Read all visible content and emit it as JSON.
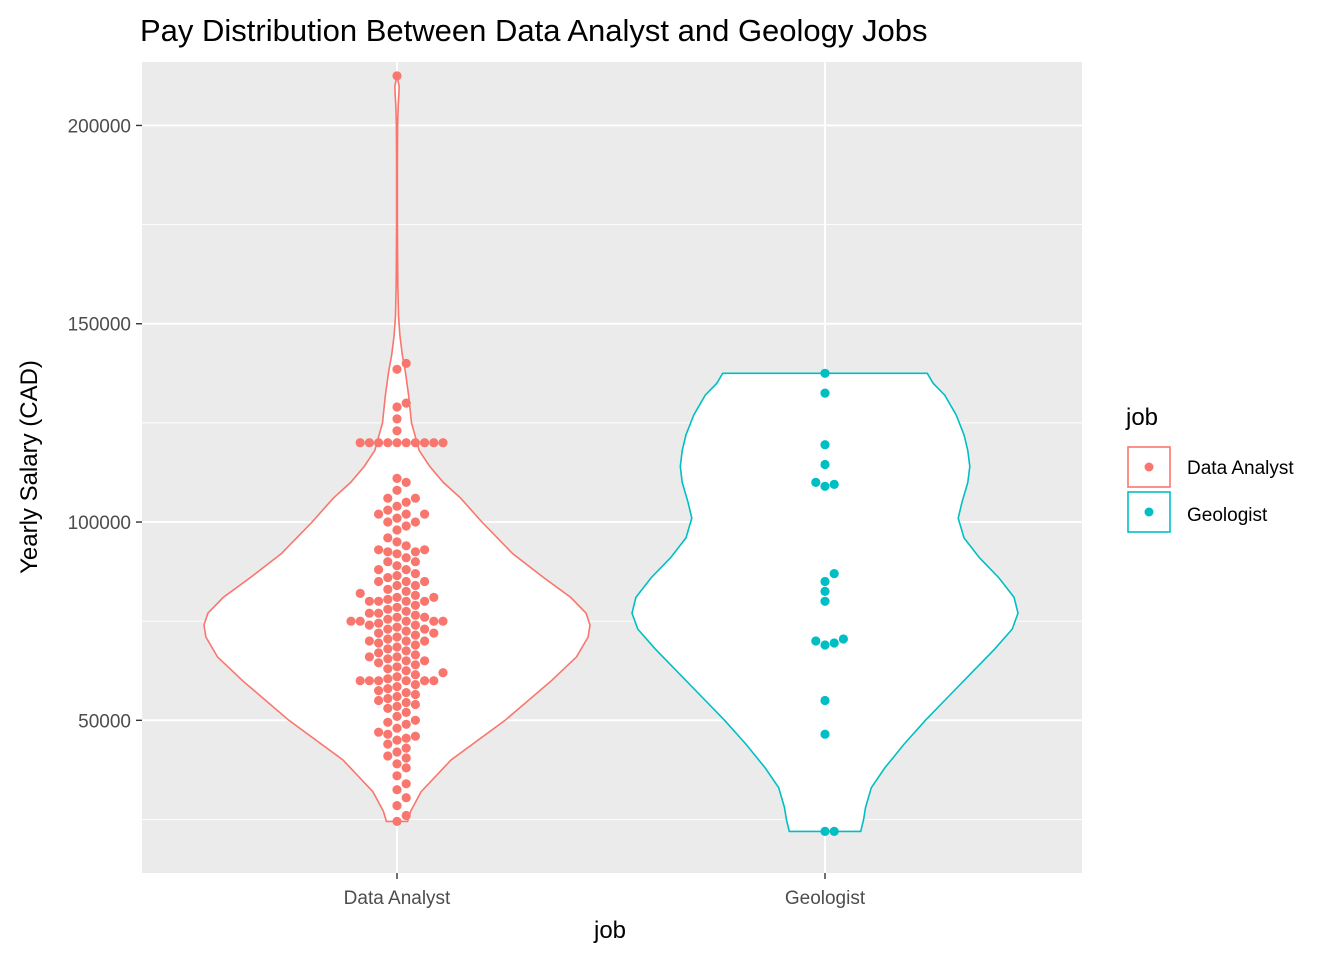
{
  "chart_data": {
    "type": "violin",
    "title": "Pay Distribution Between Data Analyst and Geology Jobs",
    "xlabel": "job",
    "ylabel": "Yearly Salary (CAD)",
    "categories": [
      "Data Analyst",
      "Geologist"
    ],
    "ylim": [
      11500,
      216000
    ],
    "yticks": [
      50000,
      100000,
      150000,
      200000
    ],
    "ytick_labels": [
      "50000",
      "100000",
      "150000",
      "200000"
    ],
    "grid": true,
    "legend": {
      "title": "job",
      "position": "right",
      "entries": [
        "Data Analyst",
        "Geologist"
      ]
    },
    "colors": {
      "Data Analyst": "#F8766D",
      "Geologist": "#00BFC4",
      "panel": "#EBEBEB",
      "grid": "#FFFFFF"
    },
    "series": [
      {
        "name": "Data Analyst",
        "range": [
          24500,
          212500
        ],
        "density": [
          [
            24500,
            0.055
          ],
          [
            27000,
            0.07
          ],
          [
            32000,
            0.125
          ],
          [
            40000,
            0.28
          ],
          [
            50000,
            0.56
          ],
          [
            60000,
            0.8
          ],
          [
            66000,
            0.93
          ],
          [
            71000,
            0.99
          ],
          [
            74000,
            1.0
          ],
          [
            77000,
            0.98
          ],
          [
            81000,
            0.9
          ],
          [
            86000,
            0.76
          ],
          [
            92000,
            0.6
          ],
          [
            100000,
            0.44
          ],
          [
            106000,
            0.33
          ],
          [
            110000,
            0.24
          ],
          [
            114000,
            0.17
          ],
          [
            118000,
            0.115
          ],
          [
            125000,
            0.075
          ],
          [
            132000,
            0.06
          ],
          [
            138000,
            0.043
          ],
          [
            142000,
            0.028
          ],
          [
            147000,
            0.015
          ],
          [
            152000,
            0.008
          ],
          [
            160000,
            0.004
          ],
          [
            175000,
            0.002
          ],
          [
            190000,
            0.002
          ],
          [
            200000,
            0.003
          ],
          [
            205000,
            0.006
          ],
          [
            208000,
            0.01
          ],
          [
            210000,
            0.011
          ],
          [
            212500,
            0.0
          ]
        ],
        "values": [
          212500,
          140000,
          138500,
          130000,
          129000,
          126000,
          123000,
          120000,
          120000,
          120000,
          120000,
          120000,
          120000,
          120000,
          120000,
          120000,
          120000,
          111000,
          110000,
          108000,
          106000,
          106000,
          105000,
          104000,
          103000,
          102000,
          102000,
          102000,
          101000,
          100000,
          100000,
          99000,
          98000,
          96000,
          95000,
          94000,
          93000,
          93000,
          92500,
          92500,
          92000,
          91000,
          90000,
          90000,
          89000,
          88000,
          88000,
          87000,
          86500,
          86000,
          85000,
          85000,
          85000,
          84000,
          84000,
          83000,
          82500,
          82000,
          81500,
          81000,
          81000,
          80500,
          80000,
          80000,
          80000,
          80000,
          79000,
          78500,
          78000,
          77500,
          77000,
          77000,
          76500,
          76000,
          76000,
          75500,
          75000,
          75000,
          75000,
          75000,
          75000,
          74500,
          74000,
          74000,
          73500,
          73000,
          73000,
          72500,
          72000,
          72000,
          71500,
          71000,
          70500,
          70000,
          70000,
          70000,
          69500,
          69000,
          68500,
          68000,
          67500,
          67000,
          66500,
          66000,
          66000,
          65500,
          65000,
          65000,
          64500,
          64000,
          63500,
          63000,
          62500,
          62000,
          61500,
          61000,
          60500,
          60000,
          60000,
          60000,
          60000,
          60000,
          60000,
          59000,
          58500,
          58000,
          57500,
          57000,
          56500,
          56000,
          55500,
          55000,
          54500,
          54000,
          53500,
          53000,
          52000,
          51000,
          50000,
          49500,
          49000,
          48000,
          47000,
          46500,
          46000,
          45500,
          45000,
          44000,
          43000,
          42000,
          41000,
          40500,
          39000,
          38000,
          36000,
          34000,
          32500,
          30500,
          28500,
          26000,
          24500
        ]
      },
      {
        "name": "Geologist",
        "range": [
          22000,
          137500
        ],
        "density": [
          [
            22000,
            0.185
          ],
          [
            25000,
            0.2
          ],
          [
            28000,
            0.21
          ],
          [
            33000,
            0.24
          ],
          [
            38000,
            0.31
          ],
          [
            44000,
            0.41
          ],
          [
            50000,
            0.52
          ],
          [
            56000,
            0.64
          ],
          [
            62000,
            0.76
          ],
          [
            68000,
            0.88
          ],
          [
            73000,
            0.97
          ],
          [
            77000,
            1.0
          ],
          [
            81000,
            0.98
          ],
          [
            86000,
            0.9
          ],
          [
            91000,
            0.8
          ],
          [
            96000,
            0.72
          ],
          [
            101000,
            0.69
          ],
          [
            105000,
            0.71
          ],
          [
            110000,
            0.74
          ],
          [
            114000,
            0.75
          ],
          [
            118000,
            0.74
          ],
          [
            122000,
            0.72
          ],
          [
            127000,
            0.68
          ],
          [
            132000,
            0.62
          ],
          [
            135000,
            0.56
          ],
          [
            137500,
            0.53
          ]
        ],
        "values": [
          137500,
          132500,
          119500,
          114500,
          110000,
          109500,
          109000,
          87000,
          85000,
          82500,
          80000,
          70500,
          70000,
          69500,
          69000,
          55000,
          46500,
          22000,
          22000
        ]
      }
    ]
  }
}
